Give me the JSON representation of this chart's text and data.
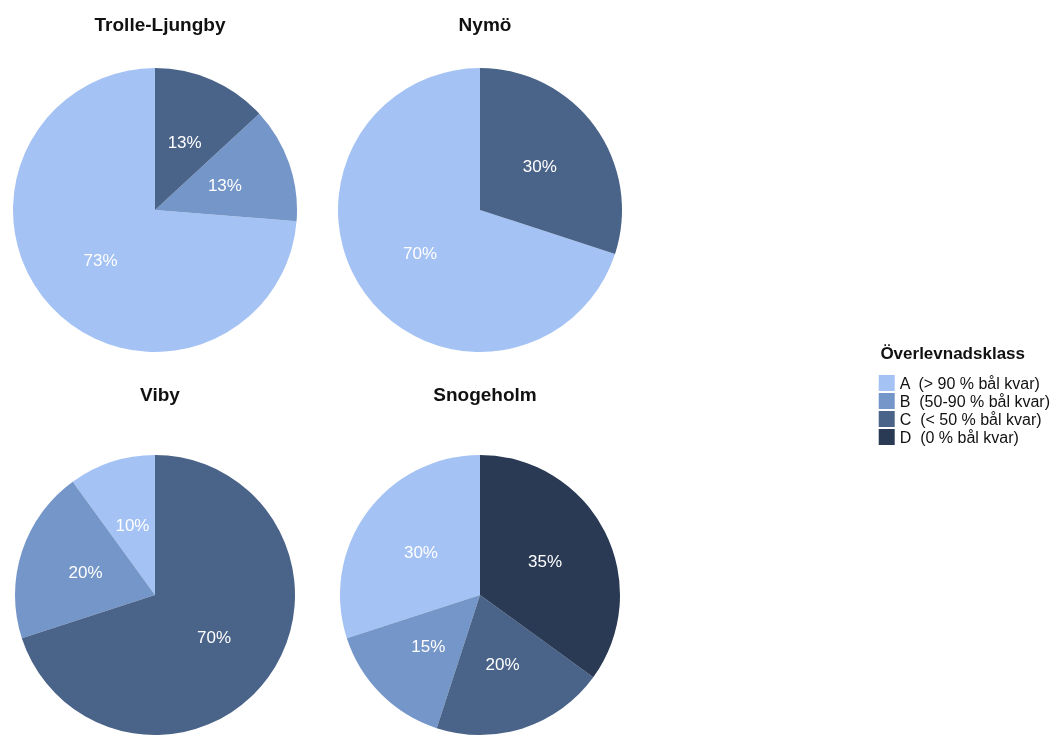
{
  "chart_data": [
    {
      "type": "pie",
      "title": "Trolle-Ljungby",
      "categories": [
        null,
        null,
        null
      ],
      "values": [
        73,
        13,
        13
      ],
      "value_labels": [
        "73%",
        "13%",
        "13%"
      ],
      "colors": [
        "#a4c2f4",
        "#7496c8",
        "#4a6388"
      ]
    },
    {
      "type": "pie",
      "title": "Nymö",
      "categories": [
        null,
        null
      ],
      "values": [
        70,
        30
      ],
      "value_labels": [
        "70%",
        "30%"
      ],
      "colors": [
        "#a4c2f4",
        "#4a6388"
      ]
    },
    {
      "type": "pie",
      "title": "Viby",
      "categories": [
        null,
        null,
        null
      ],
      "values": [
        10,
        20,
        70
      ],
      "value_labels": [
        "10%",
        "20%",
        "70%"
      ],
      "colors": [
        "#a4c2f4",
        "#7496c8",
        "#4a6388"
      ]
    },
    {
      "type": "pie",
      "title": "Snogeholm",
      "legend_title": "Överlevnadsklass",
      "legend": "right",
      "categories": [
        "A  (> 90 % bål kvar)",
        "B  (50-90 % bål kvar)",
        "C  (< 50 % bål kvar)",
        "D  (0 % bål kvar)"
      ],
      "values": [
        30,
        15,
        20,
        35
      ],
      "value_labels": [
        "30%",
        "15%",
        "20%",
        "35%"
      ],
      "colors": [
        "#a4c2f4",
        "#7496c8",
        "#4a6388",
        "#2a3a55"
      ]
    }
  ]
}
